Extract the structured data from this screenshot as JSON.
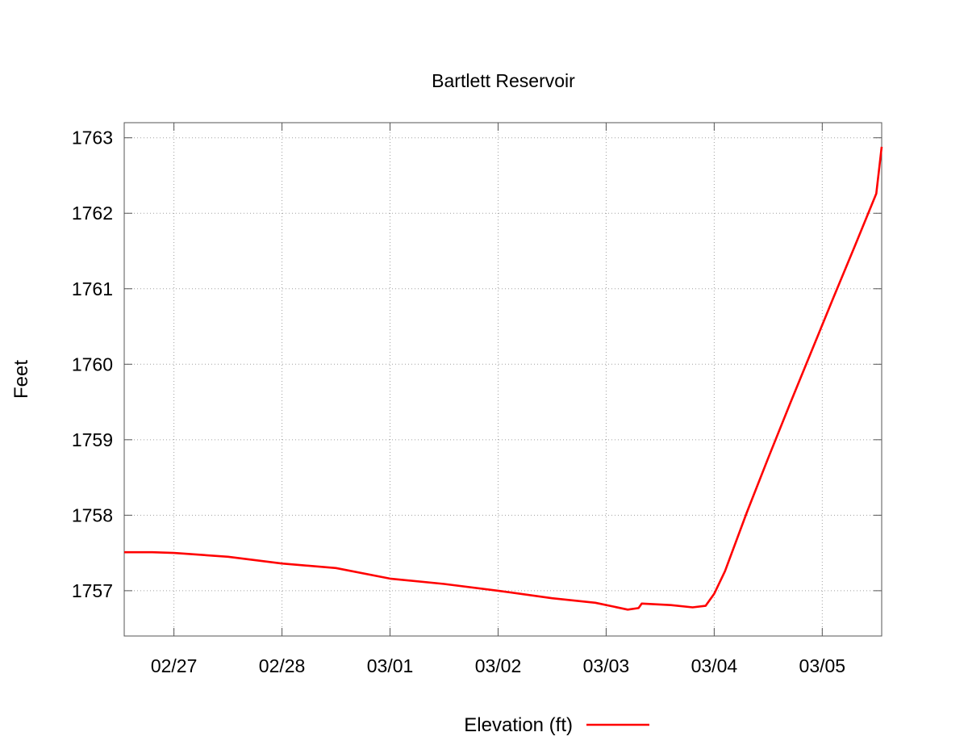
{
  "chart_data": {
    "type": "line",
    "title": "Bartlett Reservoir",
    "ylabel": "Feet",
    "xlabel": "",
    "ylim": [
      1756.4,
      1763.2
    ],
    "xlim": [
      -0.46,
      6.55
    ],
    "yticks": [
      1757,
      1758,
      1759,
      1760,
      1761,
      1762,
      1763
    ],
    "ytick_labels": [
      "1757",
      "1758",
      "1759",
      "1760",
      "1761",
      "1762",
      "1763"
    ],
    "xticks": [
      0,
      1,
      2,
      3,
      4,
      5,
      6
    ],
    "xtick_labels": [
      "02/27",
      "02/28",
      "03/01",
      "03/02",
      "03/03",
      "03/04",
      "03/05"
    ],
    "grid": true,
    "legend": "bottom-center",
    "series": [
      {
        "name": "Elevation (ft)",
        "color": "#ff0000",
        "points": [
          [
            -0.46,
            1757.51
          ],
          [
            -0.2,
            1757.51
          ],
          [
            0.0,
            1757.5
          ],
          [
            0.5,
            1757.45
          ],
          [
            1.0,
            1757.36
          ],
          [
            1.5,
            1757.3
          ],
          [
            2.0,
            1757.16
          ],
          [
            2.5,
            1757.09
          ],
          [
            3.0,
            1757.0
          ],
          [
            3.5,
            1756.9
          ],
          [
            3.9,
            1756.84
          ],
          [
            4.2,
            1756.75
          ],
          [
            4.3,
            1756.77
          ],
          [
            4.33,
            1756.83
          ],
          [
            4.6,
            1756.81
          ],
          [
            4.8,
            1756.78
          ],
          [
            4.92,
            1756.8
          ],
          [
            5.0,
            1756.96
          ],
          [
            5.1,
            1757.26
          ],
          [
            5.3,
            1758.03
          ],
          [
            5.5,
            1758.76
          ],
          [
            5.7,
            1759.47
          ],
          [
            5.9,
            1760.17
          ],
          [
            6.1,
            1760.87
          ],
          [
            6.3,
            1761.56
          ],
          [
            6.5,
            1762.26
          ],
          [
            6.55,
            1762.88
          ]
        ]
      }
    ]
  }
}
